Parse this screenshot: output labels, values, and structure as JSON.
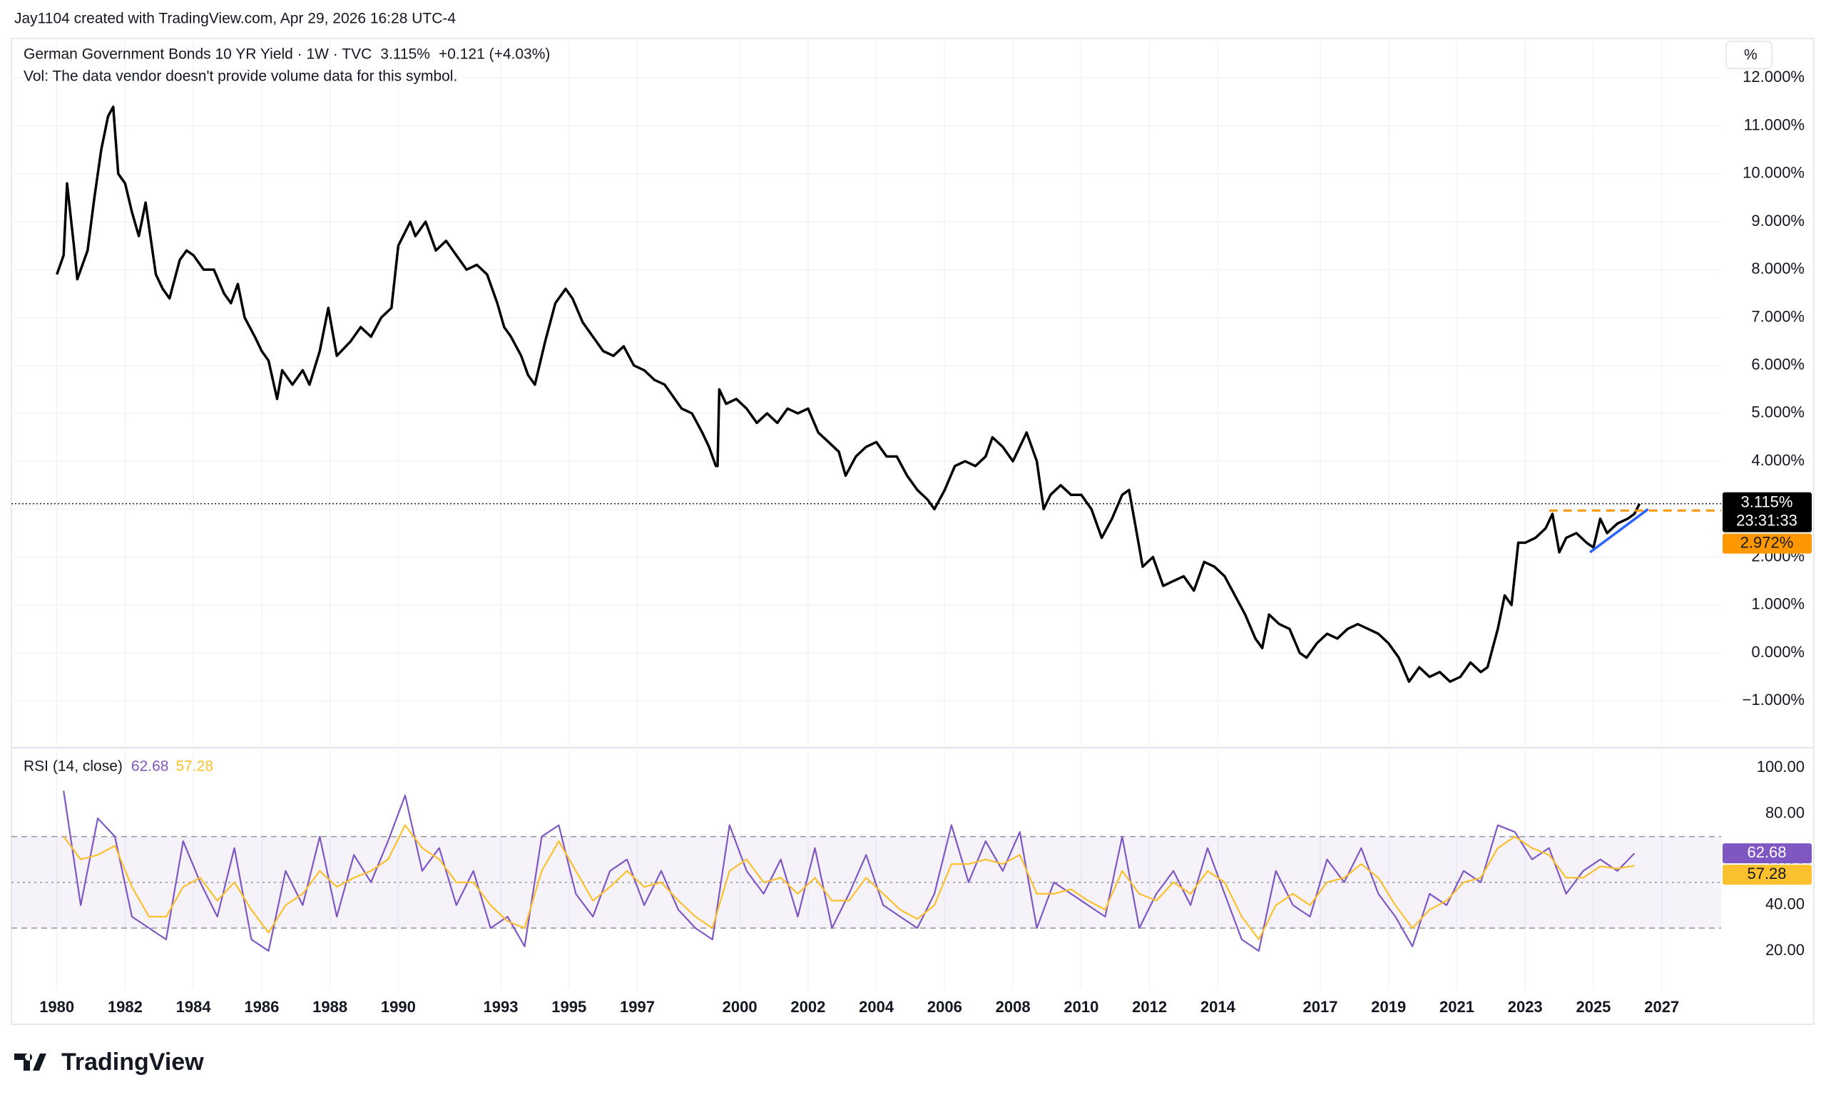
{
  "header": {
    "attribution": "Jay1104 created with TradingView.com, Apr 29, 2026 16:28 UTC-4",
    "brand": "TradingView"
  },
  "chart_data": [
    {
      "type": "line",
      "title": "German Government Bonds 10 YR Yield · 1W · TVC",
      "last": {
        "value": 3.115,
        "label": "3.115%"
      },
      "change": "+0.121 (+4.03%)",
      "note": "Vol: The data vendor doesn't provide volume data for this symbol.",
      "unit_button": "%",
      "countdown": "23:31:33",
      "x": [
        1980.0,
        1980.2,
        1980.3,
        1980.5,
        1980.6,
        1980.9,
        1981.1,
        1981.3,
        1981.5,
        1981.65,
        1981.8,
        1982.0,
        1982.2,
        1982.4,
        1982.6,
        1982.9,
        1983.1,
        1983.3,
        1983.6,
        1983.8,
        1984.0,
        1984.3,
        1984.6,
        1984.9,
        1985.1,
        1985.3,
        1985.5,
        1985.8,
        1986.0,
        1986.2,
        1986.45,
        1986.6,
        1986.9,
        1987.2,
        1987.4,
        1987.7,
        1987.95,
        1988.2,
        1988.6,
        1988.9,
        1989.2,
        1989.5,
        1989.8,
        1990.0,
        1990.35,
        1990.5,
        1990.8,
        1991.1,
        1991.4,
        1991.7,
        1992.0,
        1992.3,
        1992.6,
        1992.9,
        1993.1,
        1993.3,
        1993.6,
        1993.8,
        1994.0,
        1994.3,
        1994.6,
        1994.9,
        1995.1,
        1995.4,
        1995.7,
        1996.0,
        1996.3,
        1996.6,
        1996.9,
        1997.2,
        1997.5,
        1997.8,
        1998.0,
        1998.3,
        1998.6,
        1998.9,
        1999.1,
        1999.3,
        1999.35,
        1999.4,
        1999.6,
        1999.9,
        2000.2,
        2000.5,
        2000.8,
        2001.1,
        2001.4,
        2001.7,
        2002.0,
        2002.3,
        2002.6,
        2002.9,
        2003.1,
        2003.4,
        2003.7,
        2004.0,
        2004.3,
        2004.6,
        2004.9,
        2005.2,
        2005.5,
        2005.7,
        2006.0,
        2006.3,
        2006.6,
        2006.9,
        2007.2,
        2007.4,
        2007.7,
        2008.0,
        2008.2,
        2008.4,
        2008.7,
        2008.9,
        2009.1,
        2009.4,
        2009.7,
        2010.0,
        2010.3,
        2010.6,
        2010.9,
        2011.2,
        2011.4,
        2011.6,
        2011.8,
        2012.1,
        2012.4,
        2012.7,
        2013.0,
        2013.3,
        2013.6,
        2013.9,
        2014.2,
        2014.5,
        2014.8,
        2015.1,
        2015.3,
        2015.5,
        2015.8,
        2016.1,
        2016.4,
        2016.6,
        2016.9,
        2017.2,
        2017.5,
        2017.8,
        2018.1,
        2018.4,
        2018.7,
        2019.0,
        2019.3,
        2019.6,
        2019.9,
        2020.2,
        2020.5,
        2020.8,
        2021.1,
        2021.4,
        2021.7,
        2021.9,
        2022.2,
        2022.4,
        2022.6,
        2022.8,
        2023.0,
        2023.3,
        2023.6,
        2023.8,
        2024.0,
        2024.2,
        2024.5,
        2024.8,
        2025.0,
        2025.2,
        2025.4,
        2025.7,
        2026.0,
        2026.2,
        2026.35
      ],
      "series": [
        {
          "color": "#000000",
          "values": [
            7.9,
            8.3,
            9.8,
            8.5,
            7.8,
            8.4,
            9.5,
            10.5,
            11.2,
            11.4,
            10.0,
            9.8,
            9.2,
            8.7,
            9.4,
            7.9,
            7.6,
            7.4,
            8.2,
            8.4,
            8.3,
            8.0,
            8.0,
            7.5,
            7.3,
            7.7,
            7.0,
            6.6,
            6.3,
            6.1,
            5.3,
            5.9,
            5.6,
            5.9,
            5.6,
            6.3,
            7.2,
            6.2,
            6.5,
            6.8,
            6.6,
            7.0,
            7.2,
            8.5,
            9.0,
            8.7,
            9.0,
            8.4,
            8.6,
            8.3,
            8.0,
            8.1,
            7.9,
            7.3,
            6.8,
            6.6,
            6.2,
            5.8,
            5.6,
            6.5,
            7.3,
            7.6,
            7.4,
            6.9,
            6.6,
            6.3,
            6.2,
            6.4,
            6.0,
            5.9,
            5.7,
            5.6,
            5.4,
            5.1,
            5.0,
            4.6,
            4.3,
            3.9,
            3.9,
            5.5,
            5.2,
            5.3,
            5.1,
            4.8,
            5.0,
            4.8,
            5.1,
            5.0,
            5.1,
            4.6,
            4.4,
            4.2,
            3.7,
            4.1,
            4.3,
            4.4,
            4.1,
            4.1,
            3.7,
            3.4,
            3.2,
            3.0,
            3.4,
            3.9,
            4.0,
            3.9,
            4.1,
            4.5,
            4.3,
            4.0,
            4.3,
            4.6,
            4.0,
            3.0,
            3.3,
            3.5,
            3.3,
            3.3,
            3.0,
            2.4,
            2.8,
            3.3,
            3.4,
            2.6,
            1.8,
            2.0,
            1.4,
            1.5,
            1.6,
            1.3,
            1.9,
            1.8,
            1.6,
            1.2,
            0.8,
            0.3,
            0.1,
            0.8,
            0.6,
            0.5,
            0.0,
            -0.1,
            0.2,
            0.4,
            0.3,
            0.5,
            0.6,
            0.5,
            0.4,
            0.2,
            -0.1,
            -0.6,
            -0.3,
            -0.5,
            -0.4,
            -0.6,
            -0.5,
            -0.2,
            -0.4,
            -0.3,
            0.5,
            1.2,
            1.0,
            2.3,
            2.3,
            2.4,
            2.6,
            2.9,
            2.1,
            2.4,
            2.5,
            2.3,
            2.2,
            2.8,
            2.5,
            2.7,
            2.8,
            2.9,
            3.115
          ]
        }
      ],
      "xlim": [
        1978.67,
        2028.74
      ],
      "ylim": [
        -1.92,
        12.78
      ],
      "xticks": [
        1980,
        1982,
        1984,
        1986,
        1988,
        1990,
        1993,
        1995,
        1997,
        2000,
        2002,
        2004,
        2006,
        2008,
        2010,
        2012,
        2014,
        2017,
        2019,
        2021,
        2023,
        2025,
        2027
      ],
      "yticks": [
        {
          "value": -1,
          "label": "−1.000%"
        },
        {
          "value": 0,
          "label": "0.000%"
        },
        {
          "value": 1,
          "label": "1.000%"
        },
        {
          "value": 2,
          "label": "2.000%"
        },
        {
          "value": 3,
          "label": "3.000%"
        },
        {
          "value": 4,
          "label": "4.000%"
        },
        {
          "value": 5,
          "label": "5.000%"
        },
        {
          "value": 6,
          "label": "6.000%"
        },
        {
          "value": 7,
          "label": "7.000%"
        },
        {
          "value": 8,
          "label": "8.000%"
        },
        {
          "value": 9,
          "label": "9.000%"
        },
        {
          "value": 10,
          "label": "10.000%"
        },
        {
          "value": 11,
          "label": "11.000%"
        },
        {
          "value": 12,
          "label": "12.000%"
        }
      ],
      "grid": true,
      "drawings": [
        {
          "kind": "hline",
          "color": "#ff9800",
          "x0": 2023.7,
          "level": {
            "value": 2.972,
            "label": "2.972%"
          }
        },
        {
          "kind": "trendline",
          "color": "#2962ff",
          "x": [
            2024.9,
            2026.6
          ],
          "y": [
            2.1,
            3.0
          ]
        }
      ]
    },
    {
      "type": "line",
      "title": "RSI (14, close)",
      "x": [
        1980.2,
        1980.7,
        1981.2,
        1981.7,
        1982.2,
        1982.7,
        1983.2,
        1983.7,
        1984.2,
        1984.7,
        1985.2,
        1985.7,
        1986.2,
        1986.7,
        1987.2,
        1987.7,
        1988.2,
        1988.7,
        1989.2,
        1989.7,
        1990.2,
        1990.7,
        1991.2,
        1991.7,
        1992.2,
        1992.7,
        1993.2,
        1993.7,
        1994.2,
        1994.7,
        1995.2,
        1995.7,
        1996.2,
        1996.7,
        1997.2,
        1997.7,
        1998.2,
        1998.7,
        1999.2,
        1999.7,
        2000.2,
        2000.7,
        2001.2,
        2001.7,
        2002.2,
        2002.7,
        2003.2,
        2003.7,
        2004.2,
        2004.7,
        2005.2,
        2005.7,
        2006.2,
        2006.7,
        2007.2,
        2007.7,
        2008.2,
        2008.7,
        2009.2,
        2009.7,
        2010.2,
        2010.7,
        2011.2,
        2011.7,
        2012.2,
        2012.7,
        2013.2,
        2013.7,
        2014.2,
        2014.7,
        2015.2,
        2015.7,
        2016.2,
        2016.7,
        2017.2,
        2017.7,
        2018.2,
        2018.7,
        2019.2,
        2019.7,
        2020.2,
        2020.7,
        2021.2,
        2021.7,
        2022.2,
        2022.7,
        2023.2,
        2023.7,
        2024.2,
        2024.7,
        2025.2,
        2025.7,
        2026.2
      ],
      "series": [
        {
          "color": "#7e57c2",
          "last": 62.68,
          "values": [
            90,
            40,
            78,
            70,
            35,
            30,
            25,
            68,
            50,
            35,
            65,
            25,
            20,
            55,
            40,
            70,
            35,
            62,
            50,
            68,
            88,
            55,
            65,
            40,
            55,
            30,
            35,
            22,
            70,
            75,
            45,
            35,
            55,
            60,
            40,
            55,
            38,
            30,
            25,
            75,
            55,
            45,
            60,
            35,
            65,
            30,
            45,
            62,
            40,
            35,
            30,
            45,
            75,
            50,
            68,
            55,
            72,
            30,
            50,
            45,
            40,
            35,
            70,
            30,
            45,
            55,
            40,
            65,
            45,
            25,
            20,
            55,
            40,
            35,
            60,
            50,
            65,
            45,
            35,
            22,
            45,
            40,
            55,
            50,
            75,
            72,
            60,
            65,
            45,
            55,
            60,
            55,
            62.68
          ]
        },
        {
          "color": "#fbc02d",
          "last": 57.28,
          "values": [
            70,
            60,
            62,
            66,
            48,
            35,
            35,
            48,
            52,
            42,
            50,
            38,
            28,
            40,
            45,
            55,
            48,
            52,
            55,
            60,
            75,
            65,
            60,
            50,
            50,
            40,
            33,
            30,
            55,
            68,
            55,
            42,
            48,
            55,
            48,
            50,
            42,
            35,
            30,
            55,
            60,
            50,
            52,
            45,
            52,
            42,
            42,
            52,
            45,
            38,
            34,
            40,
            58,
            58,
            60,
            58,
            62,
            45,
            45,
            47,
            42,
            38,
            55,
            45,
            42,
            50,
            45,
            55,
            50,
            35,
            25,
            40,
            45,
            40,
            50,
            52,
            58,
            52,
            40,
            30,
            38,
            42,
            50,
            52,
            65,
            70,
            65,
            62,
            52,
            52,
            57,
            56,
            57.28
          ]
        }
      ],
      "xlim": [
        1978.67,
        2028.74
      ],
      "ylim": [
        3.2,
        107.6
      ],
      "yticks": [
        {
          "value": 20,
          "label": "20.00"
        },
        {
          "value": 40,
          "label": "40.00"
        },
        {
          "value": 60,
          "label": "60.00"
        },
        {
          "value": 80,
          "label": "80.00"
        },
        {
          "value": 100,
          "label": "100.00"
        }
      ],
      "bands": {
        "upper": 70,
        "middle": 50,
        "lower": 30,
        "color": "#7e57c2"
      }
    }
  ]
}
